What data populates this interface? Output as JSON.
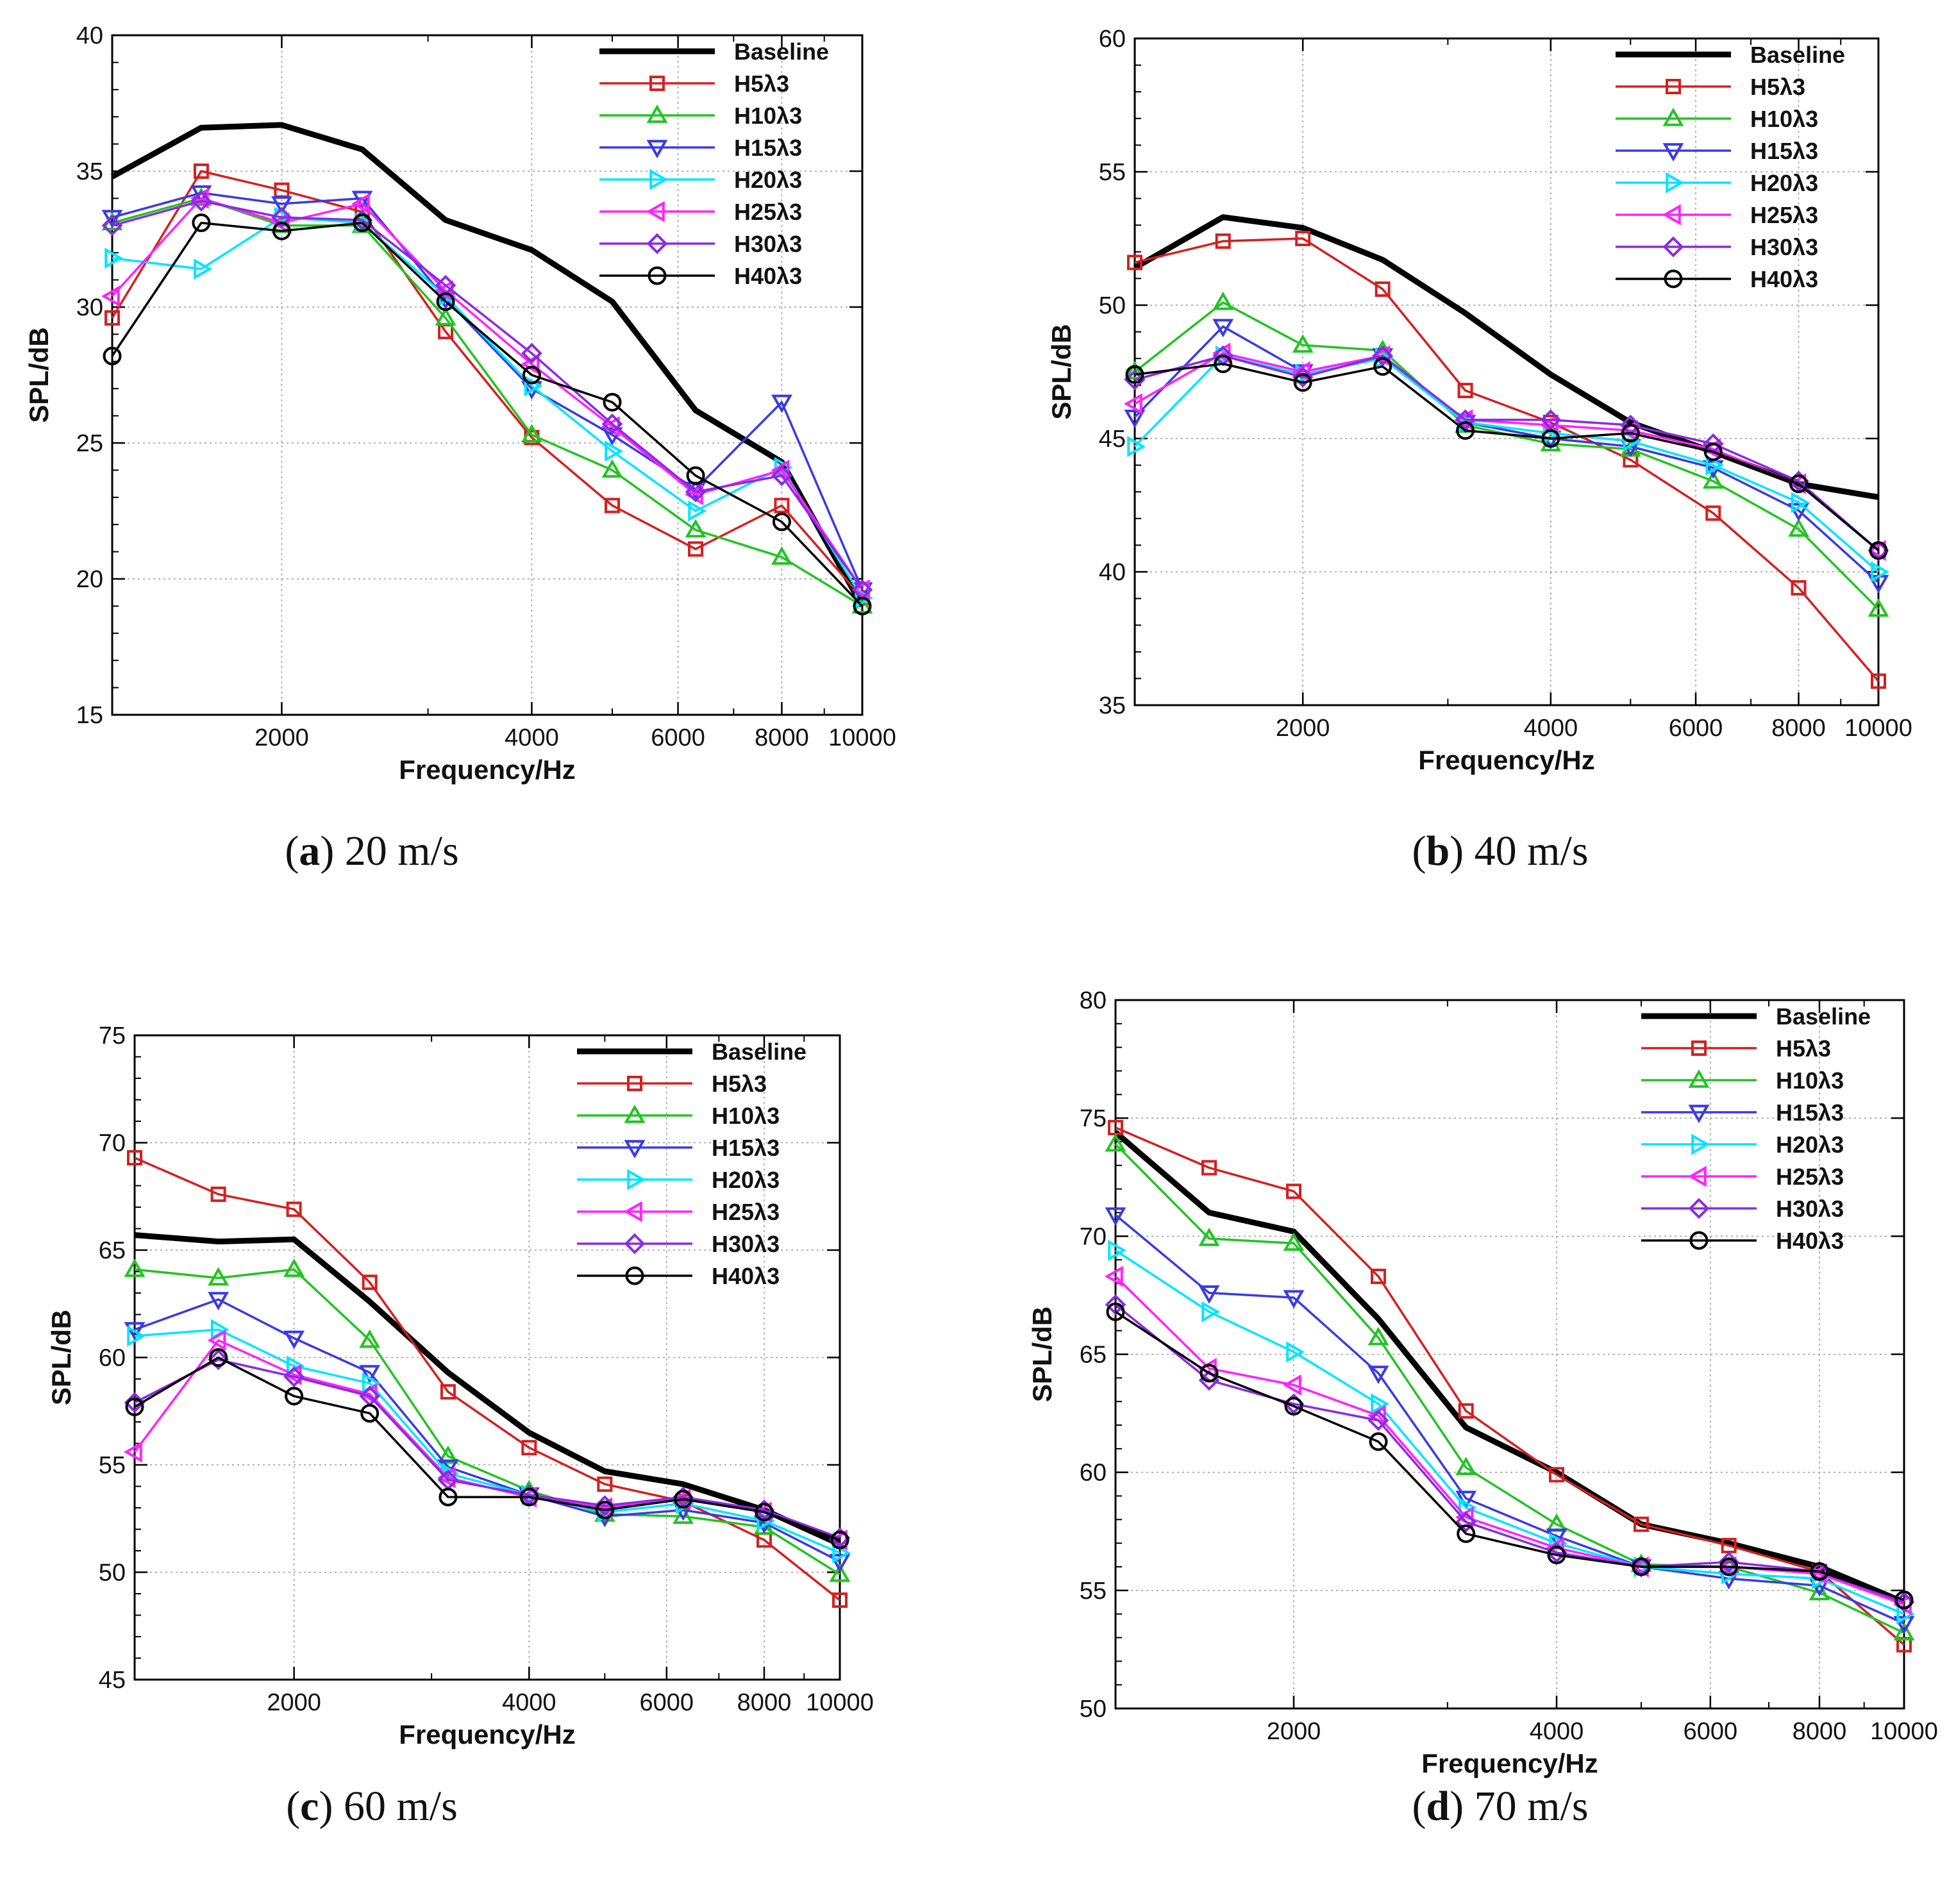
{
  "figure": {
    "captions": [
      {
        "letter": "a",
        "close": ")",
        "text": " 20 m/s"
      },
      {
        "letter": "b",
        "close": ")",
        "text": " 40 m/s"
      },
      {
        "letter": "c",
        "close": ")",
        "text": " 60 m/s"
      },
      {
        "letter": "d",
        "close": ")",
        "text": " 70 m/s"
      }
    ]
  },
  "styles": {
    "Baseline": {
      "color": "#000000",
      "marker": "none",
      "thick": true
    },
    "H5λ3": {
      "color": "#d42020",
      "marker": "square"
    },
    "H10λ3": {
      "color": "#22c422",
      "marker": "triangle-up"
    },
    "H15λ3": {
      "color": "#3a3ae6",
      "marker": "triangle-down"
    },
    "H20λ3": {
      "color": "#00e5ff",
      "marker": "triangle-right"
    },
    "H25λ3": {
      "color": "#ff22ff",
      "marker": "triangle-left"
    },
    "H30λ3": {
      "color": "#8a2be2",
      "marker": "diamond"
    },
    "H40λ3": {
      "color": "#000000",
      "marker": "circle"
    }
  },
  "chart_data": [
    {
      "type": "line",
      "title": "",
      "xlabel": "Frequency/Hz",
      "ylabel": "SPL/dB",
      "xscale": "log",
      "xlim": [
        1250,
        10000
      ],
      "ylim": [
        15,
        40
      ],
      "xticks": [
        2000,
        4000,
        6000,
        8000,
        10000
      ],
      "yticks": [
        15,
        20,
        25,
        30,
        35,
        40
      ],
      "grid": true,
      "legend": "top-right",
      "x": [
        1250,
        1600,
        2000,
        2500,
        3150,
        4000,
        5000,
        6300,
        8000,
        10000
      ],
      "series": [
        {
          "name": "Baseline",
          "values": [
            34.8,
            36.6,
            36.7,
            35.8,
            33.2,
            32.1,
            30.2,
            26.2,
            24.3,
            19.0
          ]
        },
        {
          "name": "H5λ3",
          "values": [
            29.6,
            35.0,
            34.3,
            33.5,
            29.1,
            25.2,
            22.7,
            21.1,
            22.7,
            19.3
          ]
        },
        {
          "name": "H10λ3",
          "values": [
            33.1,
            34.0,
            33.0,
            33.0,
            29.6,
            25.3,
            24.0,
            21.8,
            20.8,
            19.0
          ]
        },
        {
          "name": "H15λ3",
          "values": [
            33.3,
            34.2,
            33.8,
            34.0,
            30.3,
            27.0,
            25.3,
            23.3,
            26.5,
            19.6
          ]
        },
        {
          "name": "H20λ3",
          "values": [
            31.8,
            31.4,
            33.3,
            33.1,
            30.4,
            27.1,
            24.7,
            22.5,
            24.1,
            19.3
          ]
        },
        {
          "name": "H25λ3",
          "values": [
            30.4,
            34.0,
            33.1,
            33.8,
            30.6,
            27.9,
            25.6,
            23.1,
            24.0,
            19.6
          ]
        },
        {
          "name": "H30λ3",
          "values": [
            33.0,
            33.9,
            33.3,
            33.2,
            30.8,
            28.3,
            25.7,
            23.2,
            23.8,
            19.6
          ]
        },
        {
          "name": "H40λ3",
          "values": [
            28.2,
            33.1,
            32.8,
            33.1,
            30.2,
            27.5,
            26.5,
            23.8,
            22.1,
            19.0
          ]
        }
      ]
    },
    {
      "type": "line",
      "title": "",
      "xlabel": "Frequency/Hz",
      "ylabel": "SPL/dB",
      "xscale": "log",
      "xlim": [
        1250,
        10000
      ],
      "ylim": [
        35,
        60
      ],
      "xticks": [
        2000,
        4000,
        6000,
        8000,
        10000
      ],
      "yticks": [
        35,
        40,
        45,
        50,
        55,
        60
      ],
      "grid": true,
      "legend": "top-right",
      "x": [
        1250,
        1600,
        2000,
        2500,
        3150,
        4000,
        5000,
        6300,
        8000,
        10000
      ],
      "series": [
        {
          "name": "Baseline",
          "values": [
            51.4,
            53.3,
            52.9,
            51.7,
            49.7,
            47.4,
            45.6,
            44.5,
            43.3,
            42.8
          ]
        },
        {
          "name": "H5λ3",
          "values": [
            51.6,
            52.4,
            52.5,
            50.6,
            46.8,
            45.6,
            44.2,
            42.2,
            39.4,
            35.9
          ]
        },
        {
          "name": "H10λ3",
          "values": [
            47.5,
            50.1,
            48.5,
            48.3,
            45.5,
            44.8,
            44.6,
            43.4,
            41.6,
            38.6
          ]
        },
        {
          "name": "H15λ3",
          "values": [
            45.8,
            49.2,
            47.5,
            48.1,
            45.6,
            45.0,
            44.7,
            43.9,
            42.3,
            39.6
          ]
        },
        {
          "name": "H20λ3",
          "values": [
            44.7,
            48.1,
            47.4,
            48.0,
            45.6,
            45.2,
            44.9,
            44.0,
            42.6,
            40.0
          ]
        },
        {
          "name": "H25λ3",
          "values": [
            46.3,
            48.2,
            47.5,
            48.1,
            45.7,
            45.5,
            45.3,
            44.6,
            43.3,
            40.8
          ]
        },
        {
          "name": "H30λ3",
          "values": [
            47.2,
            48.1,
            47.3,
            48.1,
            45.7,
            45.7,
            45.5,
            44.8,
            43.4,
            40.8
          ]
        },
        {
          "name": "H40λ3",
          "values": [
            47.4,
            47.8,
            47.1,
            47.7,
            45.3,
            45.0,
            45.2,
            44.5,
            43.3,
            40.8
          ]
        }
      ]
    },
    {
      "type": "line",
      "title": "",
      "xlabel": "Frequency/Hz",
      "ylabel": "SPL/dB",
      "xscale": "log",
      "xlim": [
        1250,
        10000
      ],
      "ylim": [
        45,
        75
      ],
      "xticks": [
        2000,
        4000,
        6000,
        8000,
        10000
      ],
      "yticks": [
        45,
        50,
        55,
        60,
        65,
        70,
        75
      ],
      "grid": true,
      "legend": "top-right",
      "x": [
        1250,
        1600,
        2000,
        2500,
        3150,
        4000,
        5000,
        6300,
        8000,
        10000
      ],
      "series": [
        {
          "name": "Baseline",
          "values": [
            65.7,
            65.4,
            65.5,
            62.6,
            59.3,
            56.5,
            54.7,
            54.1,
            52.9,
            51.3
          ]
        },
        {
          "name": "H5λ3",
          "values": [
            69.3,
            67.6,
            66.9,
            63.5,
            58.4,
            55.8,
            54.1,
            53.3,
            51.5,
            48.7
          ]
        },
        {
          "name": "H10λ3",
          "values": [
            64.1,
            63.7,
            64.1,
            60.8,
            55.4,
            53.8,
            52.7,
            52.6,
            52.1,
            49.9
          ]
        },
        {
          "name": "H15λ3",
          "values": [
            61.3,
            62.7,
            60.9,
            59.3,
            54.9,
            53.6,
            52.6,
            52.9,
            52.3,
            50.5
          ]
        },
        {
          "name": "H20λ3",
          "values": [
            61.0,
            61.3,
            59.6,
            58.8,
            54.6,
            53.6,
            52.8,
            53.2,
            52.4,
            50.9
          ]
        },
        {
          "name": "H25λ3",
          "values": [
            55.6,
            60.8,
            59.2,
            58.3,
            54.4,
            53.5,
            53.0,
            53.4,
            52.8,
            51.5
          ]
        },
        {
          "name": "H30λ3",
          "values": [
            57.9,
            59.9,
            59.1,
            58.2,
            54.3,
            53.6,
            53.1,
            53.5,
            52.9,
            51.6
          ]
        },
        {
          "name": "H40λ3",
          "values": [
            57.7,
            60.0,
            58.2,
            57.4,
            53.5,
            53.5,
            52.9,
            53.4,
            52.8,
            51.5
          ]
        }
      ]
    },
    {
      "type": "line",
      "title": "",
      "xlabel": "Frequency/Hz",
      "ylabel": "SPL/dB",
      "xscale": "log",
      "xlim": [
        1250,
        10000
      ],
      "ylim": [
        50,
        80
      ],
      "xticks": [
        2000,
        4000,
        6000,
        8000,
        10000
      ],
      "yticks": [
        50,
        55,
        60,
        65,
        70,
        75,
        80
      ],
      "grid": true,
      "legend": "top-right",
      "x": [
        1250,
        1600,
        2000,
        2500,
        3150,
        4000,
        5000,
        6300,
        8000,
        10000
      ],
      "series": [
        {
          "name": "Baseline",
          "values": [
            74.4,
            71.0,
            70.2,
            66.5,
            61.9,
            60.0,
            57.8,
            57.0,
            56.0,
            54.5
          ]
        },
        {
          "name": "H5λ3",
          "values": [
            74.6,
            72.9,
            71.9,
            68.3,
            62.6,
            59.9,
            57.8,
            56.9,
            55.8,
            52.7
          ]
        },
        {
          "name": "H10λ3",
          "values": [
            73.9,
            69.9,
            69.7,
            65.7,
            60.2,
            57.8,
            56.1,
            56.0,
            54.9,
            53.2
          ]
        },
        {
          "name": "H15λ3",
          "values": [
            70.9,
            67.6,
            67.4,
            64.2,
            58.9,
            57.3,
            56.0,
            55.5,
            55.2,
            53.6
          ]
        },
        {
          "name": "H20λ3",
          "values": [
            69.4,
            66.8,
            65.1,
            62.9,
            58.5,
            57.0,
            56.0,
            55.7,
            55.5,
            54.0
          ]
        },
        {
          "name": "H25λ3",
          "values": [
            68.3,
            64.4,
            63.7,
            62.4,
            58.1,
            56.8,
            56.0,
            56.0,
            55.7,
            54.4
          ]
        },
        {
          "name": "H30λ3",
          "values": [
            67.1,
            63.9,
            62.9,
            62.2,
            57.9,
            56.6,
            56.0,
            56.2,
            55.8,
            54.5
          ]
        },
        {
          "name": "H40λ3",
          "values": [
            66.8,
            64.2,
            62.8,
            61.3,
            57.4,
            56.5,
            56.0,
            56.0,
            55.8,
            54.6
          ]
        }
      ]
    }
  ]
}
